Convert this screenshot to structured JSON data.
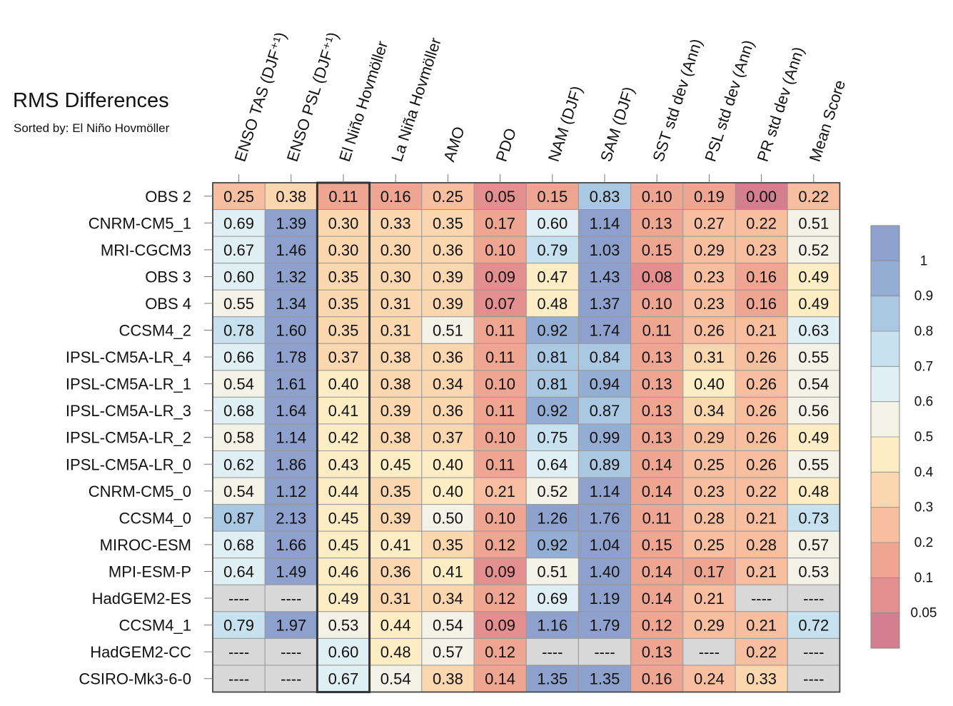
{
  "title": "RMS Differences",
  "subtitle": "Sorted by: El Niño Hovmöller",
  "chart_data": {
    "type": "heatmap",
    "title": "RMS Differences",
    "subtitle": "Sorted by: El Niño Hovmöller",
    "sorted_by": "El Niño Hovmöller",
    "highlighted_column": "El Niño Hovmöller",
    "columns": [
      "ENSO TAS (DJF⁺¹)",
      "ENSO PSL (DJF⁺¹)",
      "El Niño Hovmöller",
      "La Niña Hovmöller",
      "AMO",
      "PDO",
      "NAM (DJF)",
      "SAM (DJF)",
      "SST std dev (Ann)",
      "PSL std dev (Ann)",
      "PR std dev (Ann)",
      "Mean Score"
    ],
    "rows": [
      "OBS 2",
      "CNRM-CM5_1",
      "MRI-CGCM3",
      "OBS 3",
      "OBS 4",
      "CCSM4_2",
      "IPSL-CM5A-LR_4",
      "IPSL-CM5A-LR_1",
      "IPSL-CM5A-LR_3",
      "IPSL-CM5A-LR_2",
      "IPSL-CM5A-LR_0",
      "CNRM-CM5_0",
      "CCSM4_0",
      "MIROC-ESM",
      "MPI-ESM-P",
      "HadGEM2-ES",
      "CCSM4_1",
      "HadGEM2-CC",
      "CSIRO-Mk3-6-0"
    ],
    "values": [
      [
        "0.25",
        "0.38",
        "0.11",
        "0.16",
        "0.25",
        "0.05",
        "0.15",
        "0.83",
        "0.10",
        "0.19",
        "0.00",
        "0.22"
      ],
      [
        "0.69",
        "1.39",
        "0.30",
        "0.33",
        "0.35",
        "0.17",
        "0.60",
        "1.14",
        "0.13",
        "0.27",
        "0.22",
        "0.51"
      ],
      [
        "0.67",
        "1.46",
        "0.30",
        "0.30",
        "0.36",
        "0.10",
        "0.79",
        "1.03",
        "0.15",
        "0.29",
        "0.23",
        "0.52"
      ],
      [
        "0.60",
        "1.32",
        "0.35",
        "0.30",
        "0.39",
        "0.09",
        "0.47",
        "1.43",
        "0.08",
        "0.23",
        "0.16",
        "0.49"
      ],
      [
        "0.55",
        "1.34",
        "0.35",
        "0.31",
        "0.39",
        "0.07",
        "0.48",
        "1.37",
        "0.10",
        "0.23",
        "0.16",
        "0.49"
      ],
      [
        "0.78",
        "1.60",
        "0.35",
        "0.31",
        "0.51",
        "0.11",
        "0.92",
        "1.74",
        "0.11",
        "0.26",
        "0.21",
        "0.63"
      ],
      [
        "0.66",
        "1.78",
        "0.37",
        "0.38",
        "0.36",
        "0.11",
        "0.81",
        "0.84",
        "0.13",
        "0.31",
        "0.26",
        "0.55"
      ],
      [
        "0.54",
        "1.61",
        "0.40",
        "0.38",
        "0.34",
        "0.10",
        "0.81",
        "0.94",
        "0.13",
        "0.40",
        "0.26",
        "0.54"
      ],
      [
        "0.68",
        "1.64",
        "0.41",
        "0.39",
        "0.36",
        "0.11",
        "0.92",
        "0.87",
        "0.13",
        "0.34",
        "0.26",
        "0.56"
      ],
      [
        "0.58",
        "1.14",
        "0.42",
        "0.38",
        "0.37",
        "0.10",
        "0.75",
        "0.99",
        "0.13",
        "0.29",
        "0.26",
        "0.49"
      ],
      [
        "0.62",
        "1.86",
        "0.43",
        "0.45",
        "0.40",
        "0.11",
        "0.64",
        "0.89",
        "0.14",
        "0.25",
        "0.26",
        "0.55"
      ],
      [
        "0.54",
        "1.12",
        "0.44",
        "0.35",
        "0.40",
        "0.21",
        "0.52",
        "1.14",
        "0.14",
        "0.23",
        "0.22",
        "0.48"
      ],
      [
        "0.87",
        "2.13",
        "0.45",
        "0.39",
        "0.50",
        "0.10",
        "1.26",
        "1.76",
        "0.11",
        "0.28",
        "0.21",
        "0.73"
      ],
      [
        "0.68",
        "1.66",
        "0.45",
        "0.41",
        "0.35",
        "0.12",
        "0.92",
        "1.04",
        "0.15",
        "0.25",
        "0.28",
        "0.57"
      ],
      [
        "0.64",
        "1.49",
        "0.46",
        "0.36",
        "0.41",
        "0.09",
        "0.51",
        "1.40",
        "0.14",
        "0.17",
        "0.21",
        "0.53"
      ],
      [
        "----",
        "----",
        "0.49",
        "0.31",
        "0.34",
        "0.12",
        "0.69",
        "1.19",
        "0.14",
        "0.21",
        "----",
        "----"
      ],
      [
        "0.79",
        "1.97",
        "0.53",
        "0.44",
        "0.54",
        "0.09",
        "1.16",
        "1.79",
        "0.12",
        "0.29",
        "0.21",
        "0.72"
      ],
      [
        "----",
        "----",
        "0.60",
        "0.48",
        "0.57",
        "0.12",
        "----",
        "----",
        "0.13",
        "----",
        "0.22",
        "----"
      ],
      [
        "----",
        "----",
        "0.67",
        "0.54",
        "0.38",
        "0.14",
        "1.35",
        "1.35",
        "0.16",
        "0.24",
        "0.33",
        "----"
      ]
    ],
    "missing_marker": "----",
    "colorbar": {
      "levels": [
        "1",
        "0.9",
        "0.8",
        "0.7",
        "0.6",
        "0.5",
        "0.4",
        "0.3",
        "0.2",
        "0.1",
        "0.05"
      ],
      "thresholds": [
        0,
        0.05,
        0.1,
        0.2,
        0.3,
        0.4,
        0.5,
        0.6,
        0.7,
        0.8,
        0.9,
        1
      ],
      "colors": [
        "#d47f8f",
        "#e38f8f",
        "#eea592",
        "#f8bea0",
        "#fbd7b0",
        "#fdedc5",
        "#f3f2e6",
        "#e0eff4",
        "#c7e1ee",
        "#aac8e2",
        "#94add3",
        "#8da1cc"
      ],
      "missing_color": "#d8d8d8"
    }
  }
}
